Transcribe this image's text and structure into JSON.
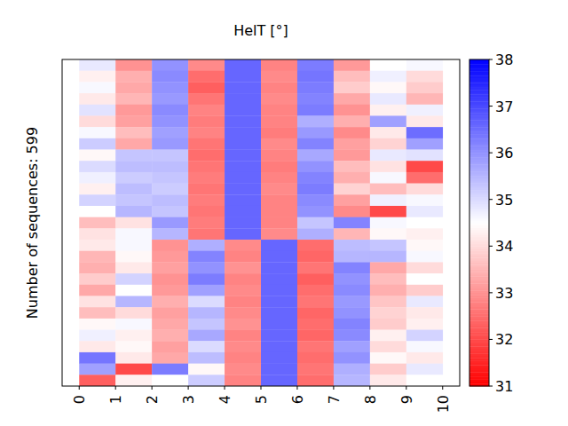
{
  "chart_data": {
    "type": "heatmap",
    "title": "HelT [°]",
    "y_label": "Number of sequences: 599",
    "xlim": [
      -0.47,
      10.47
    ],
    "xticks": [
      0,
      1,
      2,
      3,
      4,
      5,
      6,
      7,
      8,
      9,
      10
    ],
    "ylim": [
      0,
      29
    ],
    "yticks": [],
    "tick_labels": "x",
    "colorbar_lim": [
      31,
      38
    ],
    "colorbar_ticks": [
      31,
      32,
      33,
      34,
      35,
      36,
      37,
      38
    ],
    "cells": [
      [
        34.8,
        33.0,
        36.0,
        32.9,
        36.6,
        32.8,
        36.3,
        33.1,
        34.5,
        34.6
      ],
      [
        34.3,
        33.4,
        36.1,
        32.5,
        36.6,
        32.9,
        36.4,
        33.6,
        34.7,
        34.0
      ],
      [
        34.6,
        33.3,
        36.0,
        32.3,
        36.6,
        32.8,
        36.3,
        33.8,
        34.4,
        33.8
      ],
      [
        34.2,
        33.5,
        35.9,
        32.6,
        36.6,
        32.9,
        36.2,
        33.3,
        34.8,
        33.5
      ],
      [
        34.9,
        33.1,
        36.1,
        32.8,
        36.6,
        32.8,
        36.3,
        33.0,
        34.3,
        34.7
      ],
      [
        34.0,
        33.2,
        36.0,
        32.7,
        36.6,
        32.8,
        35.6,
        33.4,
        35.8,
        34.2
      ],
      [
        34.6,
        33.6,
        35.8,
        32.8,
        36.6,
        32.7,
        35.9,
        32.9,
        34.2,
        36.5
      ],
      [
        35.2,
        33.3,
        35.9,
        32.6,
        36.6,
        32.9,
        36.2,
        33.2,
        33.9,
        35.8
      ],
      [
        34.4,
        35.3,
        35.3,
        32.5,
        36.6,
        32.8,
        35.7,
        33.1,
        34.8,
        34.9
      ],
      [
        35.0,
        35.4,
        35.4,
        32.6,
        36.6,
        32.7,
        36.0,
        33.6,
        34.1,
        32.0
      ],
      [
        34.7,
        35.2,
        35.3,
        32.7,
        36.6,
        32.8,
        36.2,
        33.4,
        34.6,
        32.5
      ],
      [
        34.3,
        35.4,
        35.2,
        32.6,
        36.6,
        32.9,
        36.3,
        33.9,
        33.6,
        34.0
      ],
      [
        35.1,
        35.3,
        35.4,
        32.7,
        36.6,
        32.8,
        36.1,
        33.2,
        34.7,
        34.6
      ],
      [
        34.5,
        35.5,
        35.3,
        32.6,
        36.6,
        32.8,
        36.0,
        32.9,
        32.0,
        34.8
      ],
      [
        33.6,
        34.1,
        35.9,
        32.7,
        36.6,
        32.8,
        35.3,
        36.2,
        34.6,
        34.5
      ],
      [
        34.1,
        34.6,
        35.5,
        32.6,
        36.6,
        32.9,
        35.6,
        33.5,
        34.4,
        34.3
      ],
      [
        34.2,
        34.6,
        33.0,
        35.6,
        32.9,
        36.6,
        32.5,
        35.4,
        35.3,
        34.4
      ],
      [
        33.5,
        34.4,
        33.1,
        36.2,
        32.8,
        36.6,
        32.4,
        35.5,
        35.5,
        34.6
      ],
      [
        33.4,
        34.2,
        33.2,
        36.0,
        33.0,
        36.6,
        32.6,
        36.2,
        33.3,
        34.0
      ],
      [
        33.8,
        35.1,
        33.0,
        36.3,
        32.8,
        36.6,
        32.3,
        36.0,
        33.6,
        34.5
      ],
      [
        33.3,
        34.5,
        33.1,
        35.8,
        32.9,
        36.6,
        32.5,
        36.1,
        33.4,
        33.8
      ],
      [
        34.1,
        35.5,
        33.4,
        35.0,
        32.8,
        36.6,
        32.6,
        35.9,
        33.7,
        34.8
      ],
      [
        33.6,
        34.0,
        33.2,
        35.5,
        32.9,
        36.6,
        32.4,
        36.0,
        33.9,
        34.2
      ],
      [
        34.4,
        34.6,
        33.3,
        35.3,
        33.0,
        36.6,
        32.5,
        36.2,
        33.8,
        34.3
      ],
      [
        34.7,
        34.3,
        33.4,
        35.7,
        32.8,
        36.6,
        32.4,
        36.1,
        34.3,
        35.1
      ],
      [
        34.2,
        34.4,
        33.2,
        35.0,
        32.9,
        36.6,
        32.6,
        35.8,
        34.0,
        34.6
      ],
      [
        36.4,
        34.2,
        33.3,
        35.4,
        32.8,
        36.6,
        32.5,
        36.0,
        34.4,
        34.2
      ],
      [
        35.8,
        32.0,
        36.3,
        34.4,
        32.9,
        36.6,
        32.6,
        35.6,
        33.8,
        34.8
      ],
      [
        32.3,
        34.3,
        34.5,
        35.2,
        32.8,
        36.6,
        32.5,
        35.5,
        34.2,
        34.5
      ]
    ]
  }
}
